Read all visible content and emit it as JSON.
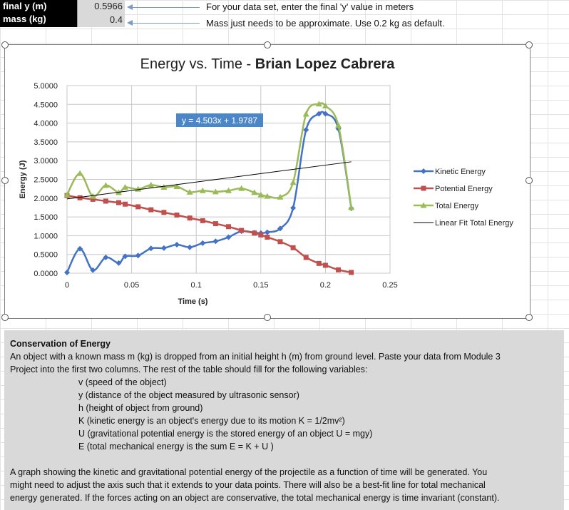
{
  "header": {
    "final_y_label": "final y (m)",
    "final_y_value": "0.5966",
    "mass_label": "mass (kg)",
    "mass_value": "0.4",
    "note_final_y": "For your data set, enter the final 'y' value in meters",
    "note_mass": "Mass just needs to be approximate. Use 0.2 kg as default."
  },
  "chart_data": {
    "type": "line",
    "title_prefix": "Energy vs. Time - ",
    "title_bold": "Brian Lopez Cabrera",
    "xlabel": "Time (s)",
    "ylabel": "Energy (J)",
    "xlim": [
      0,
      0.25
    ],
    "ylim": [
      0,
      5
    ],
    "xticks": [
      "0",
      "0.05",
      "0.1",
      "0.15",
      "0.2",
      "0.25"
    ],
    "yticks": [
      "0.0000",
      "0.5000",
      "1.0000",
      "1.5000",
      "2.0000",
      "2.5000",
      "3.0000",
      "3.5000",
      "4.0000",
      "4.5000",
      "5.0000"
    ],
    "grid": true,
    "legend_position": "right",
    "trendline_label": "y = 4.503x + 1.9787",
    "series": [
      {
        "name": "Kinetic Energy",
        "color": "#4472c4",
        "marker": "diamond",
        "x": [
          0,
          0.01,
          0.02,
          0.03,
          0.04,
          0.045,
          0.055,
          0.065,
          0.075,
          0.085,
          0.095,
          0.105,
          0.115,
          0.125,
          0.135,
          0.145,
          0.15,
          0.155,
          0.165,
          0.175,
          0.185,
          0.195,
          0.2,
          0.21,
          0.22
        ],
        "y": [
          0.02,
          0.65,
          0.08,
          0.42,
          0.27,
          0.45,
          0.47,
          0.66,
          0.67,
          0.76,
          0.69,
          0.8,
          0.85,
          0.96,
          1.12,
          1.08,
          1.07,
          1.09,
          1.19,
          1.74,
          3.82,
          4.25,
          4.25,
          3.85,
          1.73
        ]
      },
      {
        "name": "Potential Energy",
        "color": "#c0504d",
        "marker": "square",
        "x": [
          0,
          0.01,
          0.02,
          0.03,
          0.04,
          0.045,
          0.055,
          0.065,
          0.075,
          0.085,
          0.095,
          0.105,
          0.115,
          0.125,
          0.135,
          0.145,
          0.15,
          0.155,
          0.165,
          0.175,
          0.185,
          0.195,
          0.2,
          0.21,
          0.22
        ],
        "y": [
          2.07,
          2.01,
          1.97,
          1.92,
          1.88,
          1.84,
          1.77,
          1.69,
          1.62,
          1.55,
          1.47,
          1.4,
          1.32,
          1.24,
          1.14,
          1.07,
          1.02,
          0.96,
          0.84,
          0.68,
          0.42,
          0.26,
          0.21,
          0.09,
          0.02
        ]
      },
      {
        "name": "Total Energy",
        "color": "#9bbb59",
        "marker": "triangle",
        "x": [
          0,
          0.01,
          0.02,
          0.03,
          0.04,
          0.045,
          0.055,
          0.065,
          0.075,
          0.085,
          0.095,
          0.105,
          0.115,
          0.125,
          0.135,
          0.145,
          0.15,
          0.155,
          0.165,
          0.175,
          0.185,
          0.195,
          0.2,
          0.21,
          0.22
        ],
        "y": [
          2.09,
          2.66,
          2.05,
          2.34,
          2.15,
          2.29,
          2.24,
          2.35,
          2.29,
          2.31,
          2.16,
          2.2,
          2.17,
          2.2,
          2.26,
          2.15,
          2.09,
          2.05,
          2.03,
          2.42,
          4.24,
          4.51,
          4.46,
          3.94,
          1.75
        ]
      },
      {
        "name": "Linear Fit Total Energy",
        "color": "#000000",
        "marker": "none",
        "x": [
          0,
          0.22
        ],
        "y": [
          1.9787,
          2.9694
        ]
      }
    ]
  },
  "info": {
    "heading": "Conservation of Energy",
    "para1_a": "An object with a known mass m (kg) is dropped from an initial height h (m) from ground level.  Paste your data from Module 3",
    "para1_b": "Project into the first two columns. The rest of the table should fill for the following variables:",
    "var_v": "v (speed of the object)",
    "var_y": "y (distance of the object measured by ultrasonic sensor)",
    "var_h": "h (height of object from ground)",
    "var_k": "K (kinetic energy is an object's energy due to its motion K = 1/2mv²)",
    "var_u": "U (gravitational potential energy is the stored energy of an object U = mgy)",
    "var_e": "E (total mechanical energy is the sum E = K + U )",
    "para2_a": "A graph showing the kinetic and gravitational potential energy of the projectile as a function of time will be generated.  You",
    "para2_b": "might need to adjust the axis such that it extends to your data points. There will also be a best-fit line for total mechanical",
    "para2_c": "energy generated. If the forces acting on an object are conservative, the total mechanical energy is time invariant (constant)."
  }
}
